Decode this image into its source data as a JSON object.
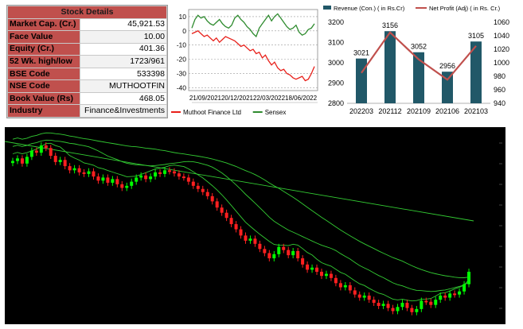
{
  "stock_details": {
    "title": "Stock Details",
    "rows": [
      {
        "label": "Market Cap. (Cr.)",
        "value": "45,921.53"
      },
      {
        "label": "Face Value",
        "value": "10.00"
      },
      {
        "label": "Equity (Cr.)",
        "value": "401.36"
      },
      {
        "label": "52 Wk. high/low",
        "value": "1723/961"
      },
      {
        "label": "BSE Code",
        "value": "533398"
      },
      {
        "label": "NSE Code",
        "value": "MUTHOOTFIN"
      },
      {
        "label": "Book Value (Rs)",
        "value": "468.05"
      },
      {
        "label": "Industry",
        "value": "Finance&Investments"
      }
    ]
  },
  "chart_data": [
    {
      "type": "line",
      "y_ticks": [
        "10",
        "0",
        "-10",
        "-20",
        "-30",
        "-40"
      ],
      "ylim": [
        -42,
        15
      ],
      "x_tick_labels": [
        "21/09/2021",
        "20/12/2021",
        "22/03/2022",
        "18/06/2022"
      ],
      "legend": [
        {
          "name": "Muthoot Finance Ltd",
          "color": "#e8201a"
        },
        {
          "name": "Sensex",
          "color": "#2e8b2e"
        }
      ],
      "series": [
        {
          "name": "Muthoot Finance Ltd",
          "color": "#e8201a",
          "values": [
            -2,
            -1,
            0,
            -2,
            -4,
            -3,
            -5,
            -7,
            -5,
            -8,
            -6,
            -4,
            -5,
            -6,
            -7,
            -9,
            -11,
            -10,
            -12,
            -14,
            -13,
            -16,
            -15,
            -19,
            -17,
            -21,
            -24,
            -22,
            -26,
            -28,
            -27,
            -30,
            -31,
            -33,
            -34,
            -33,
            -32,
            -35,
            -34,
            -30,
            -25
          ]
        },
        {
          "name": "Sensex",
          "color": "#2e8b2e",
          "values": [
            2,
            8,
            11,
            9,
            10,
            7,
            5,
            4,
            6,
            8,
            5,
            3,
            2,
            4,
            9,
            11,
            8,
            6,
            3,
            1,
            -2,
            -4,
            2,
            5,
            8,
            11,
            7,
            10,
            12,
            9,
            6,
            3,
            1,
            2,
            4,
            -1,
            -3,
            -2,
            1,
            2,
            5
          ]
        }
      ]
    },
    {
      "type": "bar",
      "categories": [
        "202203",
        "202112",
        "202109",
        "202106",
        "202103"
      ],
      "series": [
        {
          "name": "Revenue (Con.) ( in Rs.Cr)",
          "color": "#215868",
          "values": [
            3021,
            3156,
            3052,
            2956,
            3105
          ]
        },
        {
          "name": "Net Profit (Adj) ( in Rs. Cr.)",
          "color": "#c0504d",
          "values": [
            985,
            1045,
            1005,
            975,
            1025
          ]
        }
      ],
      "y_left": {
        "ticks": [
          "3200",
          "3100",
          "3000",
          "2900",
          "2800"
        ],
        "ylim": [
          2800,
          3200
        ]
      },
      "y_right": {
        "ticks": [
          "1060",
          "1040",
          "1020",
          "1000",
          "980",
          "960",
          "940"
        ],
        "ylim": [
          940,
          1060
        ]
      },
      "data_labels": [
        "3021",
        "3156",
        "3052",
        "2956",
        "3105"
      ]
    },
    {
      "type": "candlestick",
      "background": "#000000",
      "up_color": "#00ff00",
      "down_color": "#ff2020",
      "ma_color": "#33cc33",
      "closes": [
        450,
        455,
        445,
        458,
        470,
        466,
        480,
        475,
        460,
        448,
        452,
        440,
        432,
        436,
        428,
        425,
        430,
        420,
        412,
        418,
        408,
        415,
        405,
        398,
        402,
        410,
        418,
        422,
        415,
        420,
        428,
        425,
        432,
        430,
        426,
        420,
        418,
        410,
        402,
        396,
        390,
        382,
        372,
        360,
        350,
        340,
        328,
        318,
        306,
        296,
        300,
        290,
        280,
        272,
        262,
        270,
        284,
        278,
        268,
        276,
        262,
        250,
        240,
        244,
        236,
        228,
        232,
        224,
        214,
        206,
        210,
        200,
        192,
        186,
        190,
        182,
        176,
        170,
        174,
        166,
        160,
        168,
        176,
        166,
        158,
        164,
        180,
        178,
        172,
        182,
        190,
        186,
        194,
        192,
        198,
        212,
        236
      ]
    }
  ]
}
